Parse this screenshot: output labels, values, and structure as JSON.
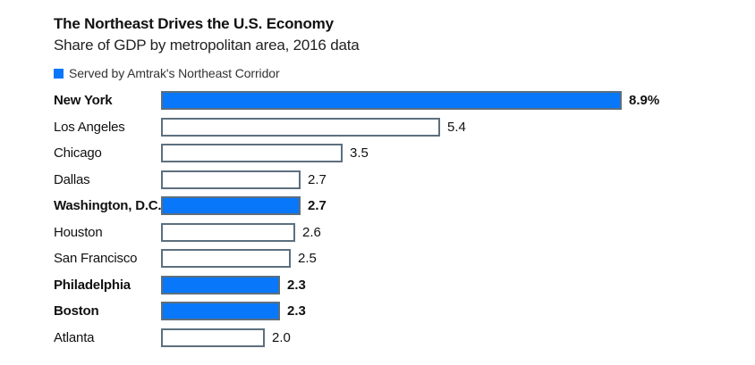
{
  "header": {
    "title": "The Northeast Drives the U.S. Economy",
    "subtitle": "Share of GDP by metropolitan area, 2016 data"
  },
  "legend": {
    "label": "Served by Amtrak's Northeast Corridor",
    "swatch_color": "#0877f9"
  },
  "colors": {
    "nec_bar_fill": "#0877f9",
    "other_bar_fill": "#ffffff",
    "bar_border": "#5c6f7e",
    "title_text": "#111111",
    "subtitle_text": "#222222"
  },
  "chart_data": {
    "type": "bar",
    "orientation": "horizontal",
    "title": "The Northeast Drives the U.S. Economy",
    "subtitle": "Share of GDP by metropolitan area, 2016 data",
    "xlim": [
      0,
      8.9
    ],
    "grid": false,
    "legend_position": "top-left",
    "legend": [
      {
        "label": "Served by Amtrak's Northeast Corridor",
        "color": "#0877f9"
      }
    ],
    "categories": [
      "New York",
      "Los Angeles",
      "Chicago",
      "Dallas",
      "Washington, D.C.",
      "Houston",
      "San Francisco",
      "Philadelphia",
      "Boston",
      "Atlanta"
    ],
    "values": [
      8.9,
      5.4,
      3.5,
      2.7,
      2.7,
      2.6,
      2.5,
      2.3,
      2.3,
      2.0
    ],
    "value_labels": [
      "8.9%",
      "5.4",
      "3.5",
      "2.7",
      "2.7",
      "2.6",
      "2.5",
      "2.3",
      "2.3",
      "2.0"
    ],
    "nec_served": [
      true,
      false,
      false,
      false,
      true,
      false,
      false,
      true,
      true,
      false
    ]
  }
}
